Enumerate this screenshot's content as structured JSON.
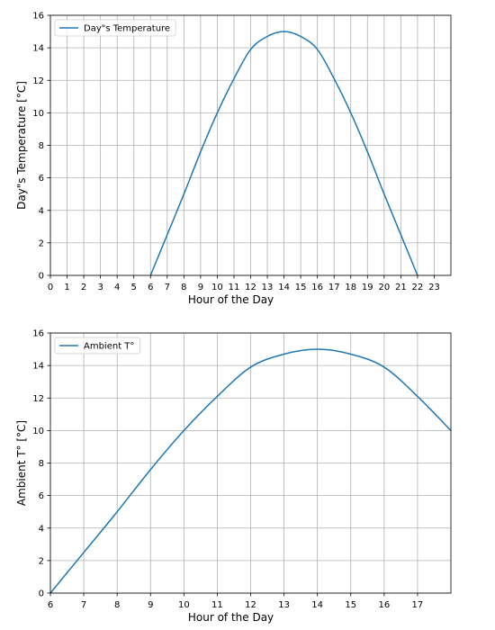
{
  "chart_data": [
    {
      "type": "line",
      "title": "",
      "xlabel": "Hour of the Day",
      "ylabel": "Day\"s Temperature [°C]",
      "xlim": [
        0,
        24
      ],
      "ylim": [
        0,
        16
      ],
      "xticks": [
        0,
        1,
        2,
        3,
        4,
        5,
        6,
        7,
        8,
        9,
        10,
        11,
        12,
        13,
        14,
        15,
        16,
        17,
        18,
        19,
        20,
        21,
        22,
        23
      ],
      "yticks": [
        0,
        2,
        4,
        6,
        8,
        10,
        12,
        14,
        16
      ],
      "grid": true,
      "legend_position": "top-left",
      "series": [
        {
          "name": "Day\"s Temperature",
          "color": "#1f77b4",
          "x": [
            6,
            7,
            8,
            9,
            10,
            11,
            12,
            13,
            14,
            15,
            16,
            17,
            18,
            19,
            20,
            21,
            22
          ],
          "y": [
            0,
            2.5,
            5.0,
            7.6,
            10.0,
            12.1,
            13.9,
            14.7,
            15.0,
            14.7,
            13.9,
            12.1,
            10.0,
            7.6,
            5.0,
            2.5,
            0
          ]
        }
      ]
    },
    {
      "type": "line",
      "title": "",
      "xlabel": "Hour of the Day",
      "ylabel": "Ambient T° [°C]",
      "xlim": [
        6,
        18
      ],
      "ylim": [
        0,
        16
      ],
      "xticks": [
        6,
        7,
        8,
        9,
        10,
        11,
        12,
        13,
        14,
        15,
        16,
        17
      ],
      "yticks": [
        0,
        2,
        4,
        6,
        8,
        10,
        12,
        14,
        16
      ],
      "grid": true,
      "legend_position": "top-left",
      "series": [
        {
          "name": "Ambient T°",
          "color": "#1f77b4",
          "x": [
            6,
            7,
            8,
            9,
            10,
            11,
            12,
            13,
            14,
            15,
            16,
            17,
            18
          ],
          "y": [
            0,
            2.5,
            5.0,
            7.6,
            10.0,
            12.1,
            13.9,
            14.7,
            15.0,
            14.7,
            13.9,
            12.1,
            10.0
          ]
        }
      ]
    }
  ]
}
